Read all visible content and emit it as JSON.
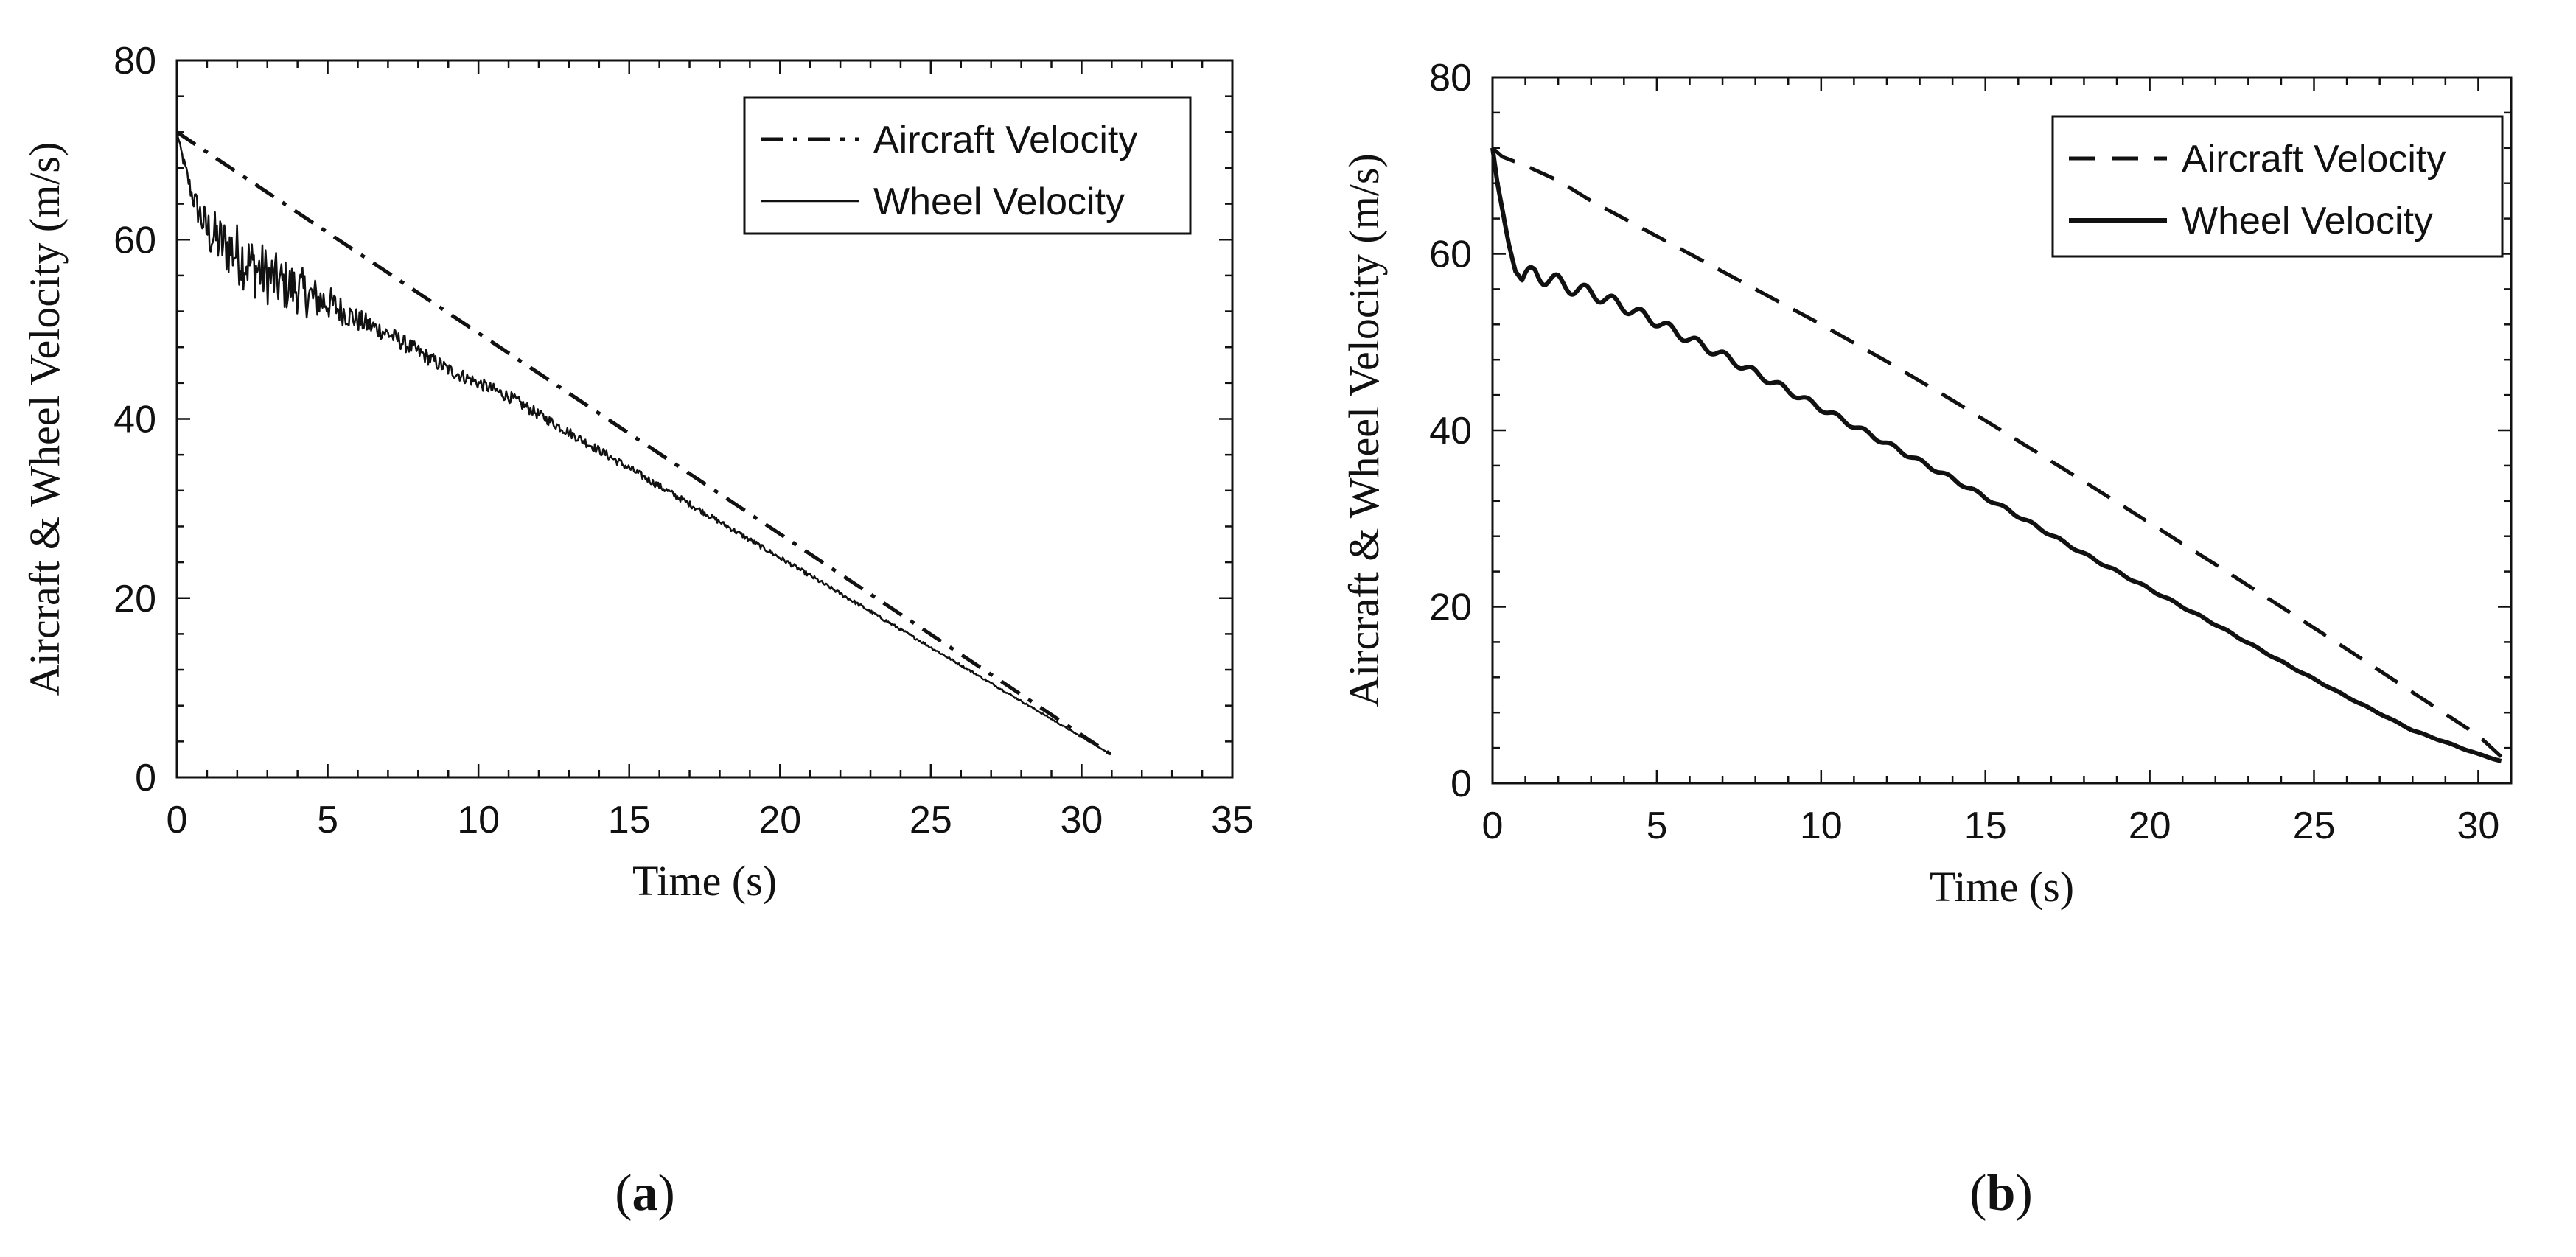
{
  "chart_data": [
    {
      "type": "line",
      "panel": "a",
      "caption_letter": "a",
      "xlabel": "Time (s)",
      "ylabel": "Aircraft & Wheel Velocity (m/s)",
      "xlim": [
        0,
        35
      ],
      "ylim": [
        0,
        80
      ],
      "xticks": [
        0,
        5,
        10,
        15,
        20,
        25,
        30,
        35
      ],
      "yticks": [
        0,
        20,
        40,
        60,
        80
      ],
      "legend_position": "top-right",
      "series": [
        {
          "name": "Aircraft Velocity",
          "style": "dashdot",
          "x": [
            0,
            31
          ],
          "y": [
            72,
            2.5
          ]
        },
        {
          "name": "Wheel Velocity",
          "style": "solid-thin",
          "x": [
            0,
            0.2,
            0.5,
            0.8,
            1.0,
            1.5,
            2.0,
            2.5,
            3,
            3.5,
            4,
            4.5,
            5,
            5.5,
            6,
            7,
            8,
            9,
            10,
            11,
            12,
            13,
            14,
            15,
            16,
            17,
            18,
            19,
            20,
            21,
            22,
            23,
            24,
            25,
            26,
            27,
            28,
            29,
            30,
            31
          ],
          "y": [
            72,
            69,
            65,
            62.5,
            61,
            59.5,
            58.5,
            57,
            56,
            55,
            54.5,
            53.5,
            53,
            52,
            51,
            49.5,
            47.5,
            45.5,
            44,
            42.5,
            40.5,
            38.5,
            36.5,
            34.5,
            32.5,
            30.5,
            28.5,
            26.5,
            24.5,
            22.5,
            20.5,
            18.5,
            16.5,
            14.5,
            12.5,
            10.5,
            8.5,
            6.5,
            4.5,
            2.5
          ],
          "noise": [
            0,
            0.6,
            1.2,
            2.0,
            2.8,
            3.2,
            3.5,
            3.5,
            3.3,
            3.0,
            2.8,
            2.5,
            2.0,
            1.6,
            1.3,
            1.0,
            0.9,
            0.8,
            0.7,
            0.7,
            0.6,
            0.55,
            0.5,
            0.45,
            0.4,
            0.35,
            0.3,
            0.3,
            0.25,
            0.25,
            0.2,
            0.2,
            0.15,
            0.15,
            0.12,
            0.1,
            0.1,
            0.08,
            0.05,
            0
          ]
        }
      ]
    },
    {
      "type": "line",
      "panel": "b",
      "caption_letter": "b",
      "xlabel": "Time (s)",
      "ylabel": "Aircraft & Wheel Velocity (m/s)",
      "xlim": [
        0,
        31
      ],
      "ylim": [
        0,
        80
      ],
      "xticks": [
        0,
        5,
        10,
        15,
        20,
        25,
        30
      ],
      "yticks": [
        0,
        20,
        40,
        60,
        80
      ],
      "legend_position": "top-right",
      "series": [
        {
          "name": "Aircraft Velocity",
          "style": "dashed",
          "x": [
            0,
            0.3,
            1,
            2,
            3,
            4,
            6,
            8,
            10,
            12,
            14,
            16,
            18,
            20,
            22,
            24,
            26,
            28,
            30,
            30.7
          ],
          "y": [
            72,
            71,
            70,
            68.3,
            66,
            64,
            60,
            56,
            52,
            47.8,
            43.4,
            38.8,
            34.2,
            29.5,
            24.8,
            20,
            15.2,
            10.3,
            5.4,
            3
          ]
        },
        {
          "name": "Wheel Velocity",
          "style": "solid-thick",
          "x": [
            0,
            0.15,
            0.3,
            0.5,
            0.7,
            0.9,
            1.1,
            1.3,
            1.6,
            2.0,
            2.5,
            3,
            4,
            5,
            6,
            7,
            8,
            9,
            10,
            12,
            14,
            16,
            18,
            20,
            22,
            24,
            26,
            28,
            30,
            30.7
          ],
          "y": [
            72,
            68,
            65,
            61,
            58,
            57,
            57.5,
            58,
            57.2,
            56.8,
            56,
            55.6,
            54,
            52.3,
            50.3,
            48.5,
            46.5,
            44.5,
            42.5,
            38.5,
            34.5,
            30.3,
            26,
            22,
            18,
            13.8,
            9.8,
            6,
            3.3,
            2.5
          ],
          "ripple": 0.9
        }
      ]
    }
  ]
}
